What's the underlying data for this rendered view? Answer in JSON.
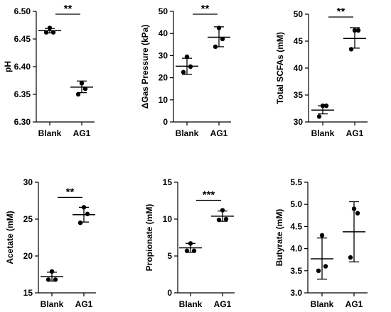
{
  "chart_data": [
    {
      "type": "scatter",
      "ylabel": "pH",
      "categories": [
        "Blank",
        "AG1"
      ],
      "ylim": [
        6.3,
        6.5
      ],
      "yticks": [
        "6.30",
        "6.35",
        "6.40",
        "6.45",
        "6.50"
      ],
      "series": [
        {
          "points": [
            6.47,
            6.462,
            6.462
          ],
          "mean": 6.465,
          "sd_low": 6.461,
          "sd_high": 6.469
        },
        {
          "points": [
            6.37,
            6.36,
            6.35
          ],
          "mean": 6.363,
          "sd_low": 6.353,
          "sd_high": 6.374
        }
      ],
      "significance": "**"
    },
    {
      "type": "scatter",
      "ylabel": "ΔGas Pressure (kPa)",
      "categories": [
        "Blank",
        "AG1"
      ],
      "ylim": [
        0,
        50
      ],
      "yticks": [
        "0",
        "10",
        "20",
        "30",
        "40",
        "50"
      ],
      "series": [
        {
          "points": [
            29.5,
            25.0,
            22.5
          ],
          "mean": 25.2,
          "sd_low": 21.5,
          "sd_high": 28.8
        },
        {
          "points": [
            42.5,
            37.5,
            34.0
          ],
          "mean": 38.3,
          "sd_low": 34.0,
          "sd_high": 43.0
        }
      ],
      "significance": "**"
    },
    {
      "type": "scatter",
      "ylabel": "Total SCFAs (mM)",
      "categories": [
        "Blank",
        "AG1"
      ],
      "ylim": [
        30,
        50
      ],
      "yticks": [
        "30",
        "35",
        "40",
        "45",
        "50"
      ],
      "series": [
        {
          "points": [
            33.0,
            33.0,
            31.0
          ],
          "mean": 32.2,
          "sd_low": 31.5,
          "sd_high": 33.0
        },
        {
          "points": [
            47.0,
            47.0,
            43.5
          ],
          "mean": 45.5,
          "sd_low": 43.7,
          "sd_high": 47.5
        }
      ],
      "significance": "**"
    },
    {
      "type": "scatter",
      "ylabel": "Acetate (mM)",
      "categories": [
        "Blank",
        "AG1"
      ],
      "ylim": [
        15,
        30
      ],
      "yticks": [
        "15",
        "20",
        "25",
        "30"
      ],
      "series": [
        {
          "points": [
            17.9,
            16.8,
            16.8
          ],
          "mean": 17.2,
          "sd_low": 16.6,
          "sd_high": 17.8
        },
        {
          "points": [
            26.6,
            25.7,
            24.5
          ],
          "mean": 25.6,
          "sd_low": 24.6,
          "sd_high": 26.6
        }
      ],
      "significance": "**"
    },
    {
      "type": "scatter",
      "ylabel": "Propionate (mM)",
      "categories": [
        "Blank",
        "AG1"
      ],
      "ylim": [
        0,
        15
      ],
      "yticks": [
        "0",
        "5",
        "10",
        "15"
      ],
      "series": [
        {
          "points": [
            6.7,
            5.7,
            5.7
          ],
          "mean": 6.1,
          "sd_low": 5.5,
          "sd_high": 6.7
        },
        {
          "points": [
            11.2,
            10.0,
            9.9
          ],
          "mean": 10.4,
          "sd_low": 9.7,
          "sd_high": 11.1
        }
      ],
      "significance": "***"
    },
    {
      "type": "scatter",
      "ylabel": "Butyrate (mM)",
      "categories": [
        "Blank",
        "AG1"
      ],
      "ylim": [
        3.0,
        5.5
      ],
      "yticks": [
        "3.0",
        "3.5",
        "4.0",
        "4.5",
        "5.0",
        "5.5"
      ],
      "series": [
        {
          "points": [
            4.3,
            3.6,
            3.5
          ],
          "mean": 3.77,
          "sd_low": 3.31,
          "sd_high": 4.24
        },
        {
          "points": [
            4.9,
            4.8,
            3.8
          ],
          "mean": 4.38,
          "sd_low": 3.7,
          "sd_high": 5.06
        }
      ],
      "significance": ""
    }
  ]
}
